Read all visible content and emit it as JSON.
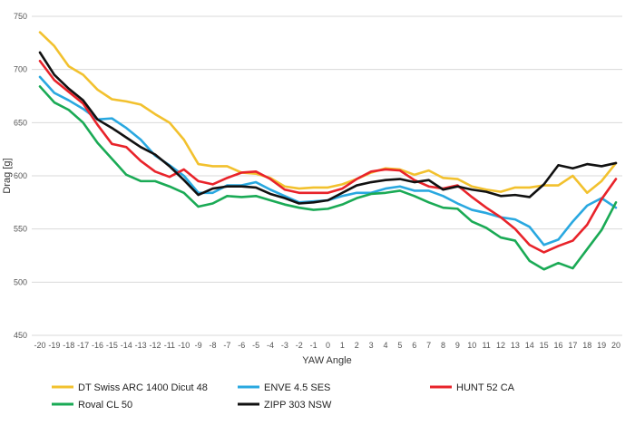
{
  "chart_data": {
    "type": "line",
    "title": "",
    "xlabel": "YAW Angle",
    "ylabel": "Drag [g]",
    "ylim": [
      450,
      750
    ],
    "yticks": [
      450,
      500,
      550,
      600,
      650,
      700,
      750
    ],
    "x": [
      -20,
      -19,
      -18,
      -17,
      -16,
      -15,
      -14,
      -13,
      -12,
      -11,
      -10,
      -9,
      -8,
      -7,
      -6,
      -5,
      -4,
      -3,
      -2,
      -1,
      0,
      1,
      2,
      3,
      4,
      5,
      6,
      7,
      8,
      9,
      10,
      11,
      12,
      13,
      14,
      15,
      16,
      17,
      18,
      19,
      20
    ],
    "grid": true,
    "legend_position": "bottom",
    "series": [
      {
        "name": "DT Swiss ARC 1400 Dicut 48",
        "color": "#F2C12E",
        "values": [
          735,
          722,
          703,
          695,
          681,
          672,
          670,
          667,
          658,
          650,
          634,
          611,
          609,
          609,
          603,
          602,
          598,
          590,
          588,
          589,
          589,
          592,
          597,
          603,
          607,
          606,
          601,
          605,
          598,
          597,
          590,
          587,
          585,
          589,
          589,
          591,
          591,
          600,
          584,
          595,
          612
        ]
      },
      {
        "name": "ENVE 4.5 SES",
        "color": "#29A8E0",
        "values": [
          693,
          678,
          671,
          663,
          653,
          654,
          645,
          634,
          619,
          610,
          600,
          584,
          584,
          591,
          591,
          594,
          587,
          581,
          575,
          576,
          577,
          581,
          584,
          584,
          588,
          590,
          586,
          586,
          581,
          574,
          568,
          565,
          561,
          559,
          552,
          535,
          540,
          557,
          572,
          579,
          570
        ]
      },
      {
        "name": "HUNT 52 CA",
        "color": "#E8232A",
        "values": [
          708,
          690,
          679,
          668,
          648,
          630,
          627,
          614,
          604,
          599,
          606,
          595,
          592,
          598,
          603,
          604,
          597,
          587,
          584,
          584,
          584,
          588,
          597,
          604,
          606,
          605,
          596,
          590,
          588,
          591,
          580,
          570,
          561,
          550,
          535,
          528,
          534,
          539,
          554,
          578,
          597
        ]
      },
      {
        "name": "Roval CL 50",
        "color": "#1AAA55",
        "values": [
          684,
          669,
          662,
          650,
          631,
          616,
          601,
          595,
          595,
          590,
          584,
          571,
          574,
          581,
          580,
          581,
          577,
          573,
          570,
          568,
          569,
          573,
          579,
          583,
          584,
          586,
          581,
          575,
          570,
          569,
          557,
          551,
          542,
          539,
          520,
          512,
          518,
          513,
          531,
          549,
          575
        ]
      },
      {
        "name": "ZIPP 303 NSW",
        "color": "#111111",
        "values": [
          716,
          695,
          682,
          671,
          653,
          645,
          636,
          627,
          620,
          609,
          596,
          582,
          588,
          590,
          590,
          589,
          583,
          579,
          574,
          575,
          577,
          584,
          591,
          594,
          596,
          597,
          594,
          596,
          587,
          590,
          587,
          585,
          581,
          582,
          580,
          592,
          610,
          607,
          611,
          609,
          612
        ]
      }
    ]
  }
}
